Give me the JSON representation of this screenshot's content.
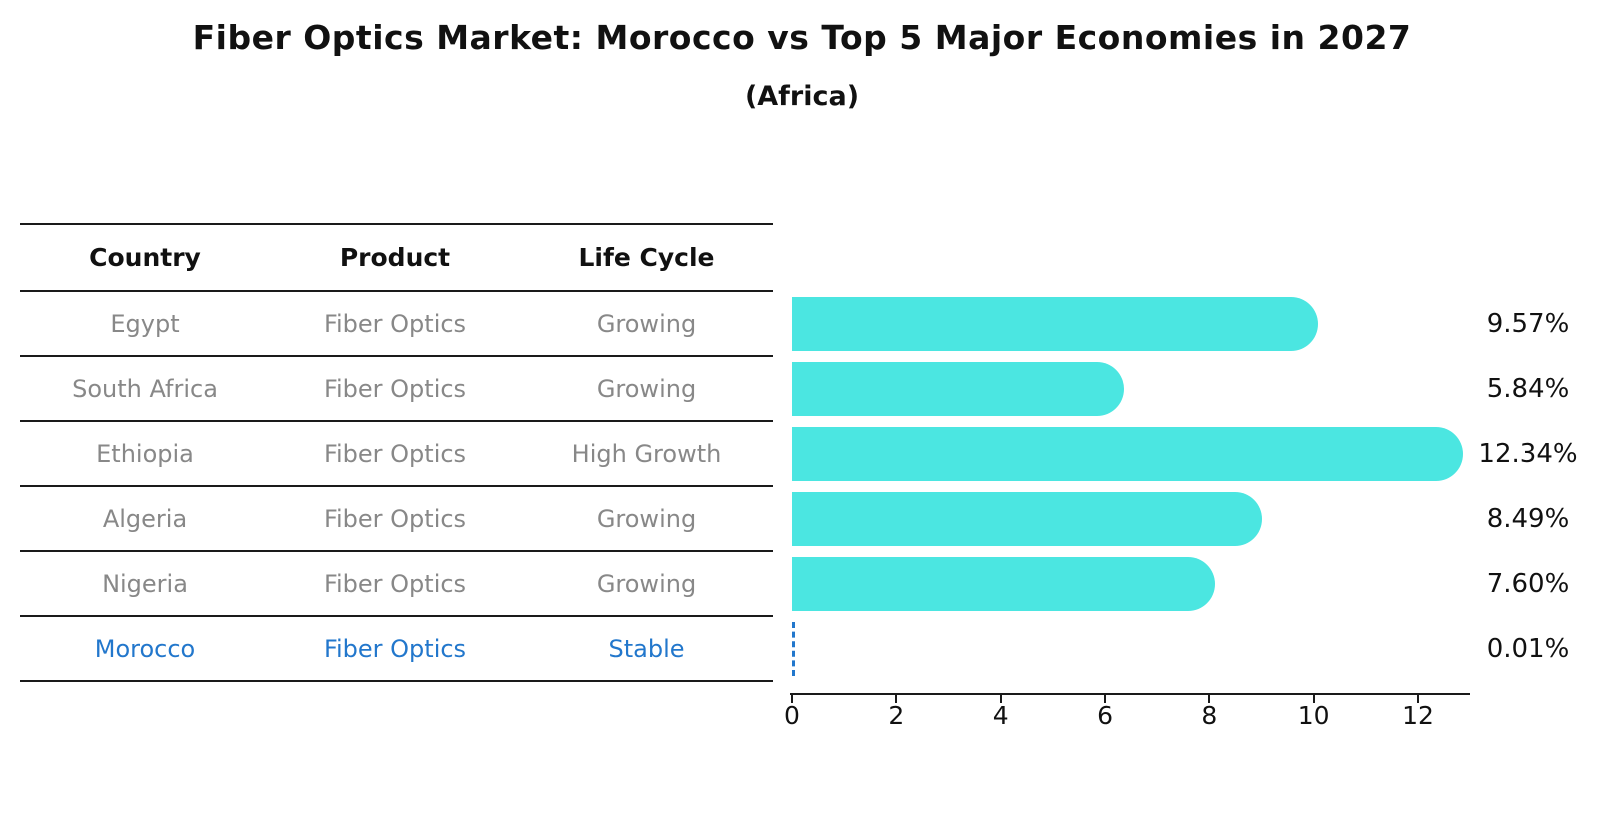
{
  "title": "Fiber Optics Market: Morocco vs Top 5 Major Economies in 2027",
  "subtitle": "(Africa)",
  "colors": {
    "bar": "#4be6e1",
    "highlight": "#2277cc",
    "row_text": "#888888",
    "heading_text": "#111111",
    "line": "#1a1a1a"
  },
  "table": {
    "headers": [
      "Country",
      "Product",
      "Life Cycle"
    ],
    "rows": [
      {
        "country": "Egypt",
        "product": "Fiber Optics",
        "life_cycle": "Growing",
        "highlight": false
      },
      {
        "country": "South Africa",
        "product": "Fiber Optics",
        "life_cycle": "Growing",
        "highlight": false
      },
      {
        "country": "Ethiopia",
        "product": "Fiber Optics",
        "life_cycle": "High Growth",
        "highlight": false
      },
      {
        "country": "Algeria",
        "product": "Fiber Optics",
        "life_cycle": "Growing",
        "highlight": false
      },
      {
        "country": "Nigeria",
        "product": "Fiber Optics",
        "life_cycle": "Growing",
        "highlight": false
      },
      {
        "country": "Morocco",
        "product": "Fiber Optics",
        "life_cycle": "Stable",
        "highlight": true
      }
    ]
  },
  "chart_data": {
    "type": "bar",
    "orientation": "horizontal",
    "title": "Fiber Optics Market: Morocco vs Top 5 Major Economies in 2027",
    "subtitle": "(Africa)",
    "categories": [
      "Egypt",
      "South Africa",
      "Ethiopia",
      "Algeria",
      "Nigeria",
      "Morocco"
    ],
    "values": [
      9.57,
      5.84,
      12.34,
      8.49,
      7.6,
      0.01
    ],
    "value_labels": [
      "9.57%",
      "5.84%",
      "12.34%",
      "8.49%",
      "7.60%",
      "0.01%"
    ],
    "x_ticks": [
      "0",
      "2",
      "4",
      "6",
      "8",
      "10",
      "12"
    ],
    "xlim": [
      0,
      13
    ],
    "xlabel": "",
    "ylabel": "",
    "grid": false,
    "legend": "none",
    "highlight_category": "Morocco",
    "bar_color_hex": "#4be6e1",
    "highlight_color_hex": "#2277cc"
  }
}
